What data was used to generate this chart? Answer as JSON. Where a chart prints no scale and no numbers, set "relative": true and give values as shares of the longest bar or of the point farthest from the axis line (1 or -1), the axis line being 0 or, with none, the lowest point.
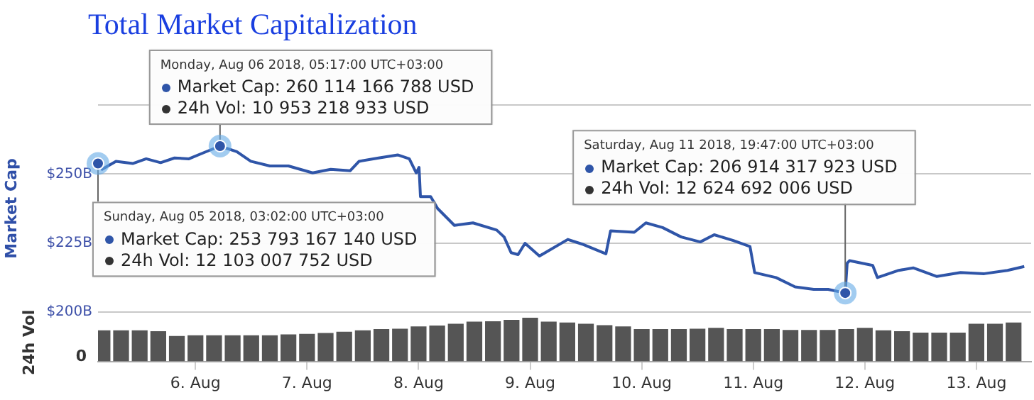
{
  "chart_data": [
    {
      "type": "line",
      "title": "Total Market Capitalization",
      "ylabel": "Market Cap",
      "tick_labels": "y",
      "grid": "y",
      "marker": "none",
      "line_style": "solid",
      "xlim": [
        "2018-08-05T03:02",
        "2018-08-13T11:47"
      ],
      "ylim": [
        200,
        275
      ],
      "yticks": [
        {
          "value": 200,
          "label": "$200B"
        },
        {
          "value": 225,
          "label": "$225B"
        },
        {
          "value": 250,
          "label": "$250B"
        },
        {
          "value": 275,
          "label": null
        }
      ],
      "x": [
        "2018-08-05T03:02",
        "2018-08-05T03:54",
        "2018-08-05T06:54",
        "2018-08-05T10:30",
        "2018-08-05T13:24",
        "2018-08-05T16:30",
        "2018-08-05T19:30",
        "2018-08-05T22:36",
        "2018-08-06T01:36",
        "2018-08-06T05:17",
        "2018-08-06T08:54",
        "2018-08-06T11:54",
        "2018-08-06T16:00",
        "2018-08-06T20:00",
        "2018-08-07T01:12",
        "2018-08-07T05:06",
        "2018-08-07T09:18",
        "2018-08-07T11:12",
        "2018-08-07T15:24",
        "2018-08-07T19:30",
        "2018-08-07T22:00",
        "2018-08-07T23:30",
        "2018-08-08T00:06",
        "2018-08-08T00:24",
        "2018-08-08T02:36",
        "2018-08-08T04:06",
        "2018-08-08T07:42",
        "2018-08-08T11:42",
        "2018-08-08T16:48",
        "2018-08-08T18:24",
        "2018-08-08T19:54",
        "2018-08-08T21:24",
        "2018-08-08T22:54",
        "2018-08-09T02:00",
        "2018-08-09T08:06",
        "2018-08-09T11:12",
        "2018-08-09T16:18",
        "2018-08-09T17:18",
        "2018-08-09T22:24",
        "2018-08-10T00:54",
        "2018-08-10T04:30",
        "2018-08-10T08:30",
        "2018-08-10T12:36",
        "2018-08-10T15:36",
        "2018-08-10T19:42",
        "2018-08-10T23:18",
        "2018-08-11T00:18",
        "2018-08-11T04:54",
        "2018-08-11T09:00",
        "2018-08-11T13:00",
        "2018-08-11T16:06",
        "2018-08-11T19:47",
        "2018-08-11T20:12",
        "2018-08-11T20:42",
        "2018-08-12T01:42",
        "2018-08-12T02:42",
        "2018-08-12T07:18",
        "2018-08-12T10:24",
        "2018-08-12T15:30",
        "2018-08-12T20:36",
        "2018-08-13T01:42",
        "2018-08-13T06:42",
        "2018-08-13T10:18"
      ],
      "series": [
        {
          "color": "#2f55a8",
          "values": [
            253.8,
            251.7,
            254.6,
            253.8,
            255.5,
            254.1,
            255.8,
            255.5,
            257.6,
            260.1,
            258.1,
            254.6,
            252.9,
            252.9,
            250.4,
            251.7,
            251.2,
            254.6,
            255.8,
            256.9,
            255.5,
            250.4,
            252.4,
            241.8,
            241.8,
            237.5,
            231.4,
            232.3,
            229.7,
            227.2,
            221.5,
            220.8,
            224.9,
            220.3,
            226.3,
            224.6,
            221.1,
            229.4,
            228.9,
            232.3,
            230.6,
            227.2,
            225.4,
            228.0,
            225.9,
            223.7,
            214.3,
            212.5,
            209.1,
            208.2,
            208.2,
            206.9,
            217.7,
            218.6,
            216.9,
            212.5,
            215.1,
            216.0,
            212.9,
            214.3,
            213.9,
            215.1,
            216.5
          ]
        }
      ],
      "annotations": [
        {
          "text": "Sunday, Aug 05 2018, 03:02:00 UTC+03:00",
          "x": "2018-08-05T03:02",
          "y": 253.8
        },
        "Market Cap: 253 793 167 140 USD",
        "24h Vol: 12 103 007 752 USD",
        "Monday, Aug 06 2018, 05:17:00 UTC+03:00",
        "Market Cap: 260 114 166 788 USD",
        {
          "text": "24h Vol: 10 953 218 933 USD",
          "x": "2018-08-06T05:17",
          "y": 260.1
        },
        "Saturday, Aug 11 2018, 19:47:00 UTC+03:00",
        "Market Cap: 206 914 317 923 USD",
        {
          "text": "24h Vol: 12 624 692 006 USD",
          "x": "2018-08-11T19:47",
          "y": 206.9
        }
      ]
    },
    {
      "type": "bar",
      "ylabel": "24h Vol",
      "relative": true,
      "color": "#555555",
      "xlim": [
        "2018-08-05T03:02",
        "2018-08-13T11:47"
      ],
      "xticks": [
        {
          "value": "2018-08-06",
          "label": "6. Aug"
        },
        {
          "value": "2018-08-07",
          "label": "7. Aug"
        },
        {
          "value": "2018-08-08",
          "label": "8. Aug"
        },
        {
          "value": "2018-08-09",
          "label": "9. Aug"
        },
        {
          "value": "2018-08-10",
          "label": "10. Aug"
        },
        {
          "value": "2018-08-11",
          "label": "11. Aug"
        },
        {
          "value": "2018-08-12",
          "label": "12. Aug"
        },
        {
          "value": "2018-08-13",
          "label": "13. Aug"
        }
      ],
      "x": [
        "2018-08-05T04:00",
        "2018-08-05T08:00",
        "2018-08-05T12:00",
        "2018-08-05T16:00",
        "2018-08-05T20:00",
        "2018-08-06T00:00",
        "2018-08-06T04:00",
        "2018-08-06T08:00",
        "2018-08-06T12:00",
        "2018-08-06T16:00",
        "2018-08-06T20:00",
        "2018-08-07T00:00",
        "2018-08-07T04:00",
        "2018-08-07T08:00",
        "2018-08-07T12:00",
        "2018-08-07T16:00",
        "2018-08-07T20:00",
        "2018-08-08T00:00",
        "2018-08-08T04:00",
        "2018-08-08T08:00",
        "2018-08-08T12:00",
        "2018-08-08T16:00",
        "2018-08-08T20:00",
        "2018-08-09T00:00",
        "2018-08-09T04:00",
        "2018-08-09T08:00",
        "2018-08-09T12:00",
        "2018-08-09T16:00",
        "2018-08-09T20:00",
        "2018-08-10T00:00",
        "2018-08-10T04:00",
        "2018-08-10T08:00",
        "2018-08-10T12:00",
        "2018-08-10T16:00",
        "2018-08-10T20:00",
        "2018-08-11T00:00",
        "2018-08-11T04:00",
        "2018-08-11T08:00",
        "2018-08-11T12:00",
        "2018-08-11T16:00",
        "2018-08-11T20:00",
        "2018-08-12T00:00",
        "2018-08-12T04:00",
        "2018-08-12T08:00",
        "2018-08-12T12:00",
        "2018-08-12T16:00",
        "2018-08-12T20:00",
        "2018-08-13T00:00",
        "2018-08-13T04:00",
        "2018-08-13T08:00"
      ],
      "values": [
        0.71,
        0.71,
        0.71,
        0.69,
        0.58,
        0.6,
        0.6,
        0.6,
        0.6,
        0.6,
        0.62,
        0.63,
        0.65,
        0.68,
        0.71,
        0.74,
        0.75,
        0.8,
        0.82,
        0.86,
        0.91,
        0.92,
        0.95,
        1,
        0.91,
        0.89,
        0.86,
        0.83,
        0.8,
        0.74,
        0.74,
        0.74,
        0.75,
        0.77,
        0.74,
        0.74,
        0.74,
        0.72,
        0.72,
        0.72,
        0.74,
        0.77,
        0.71,
        0.69,
        0.66,
        0.66,
        0.66,
        0.86,
        0.86,
        0.89
      ],
      "annotations": [
        "0"
      ]
    }
  ]
}
